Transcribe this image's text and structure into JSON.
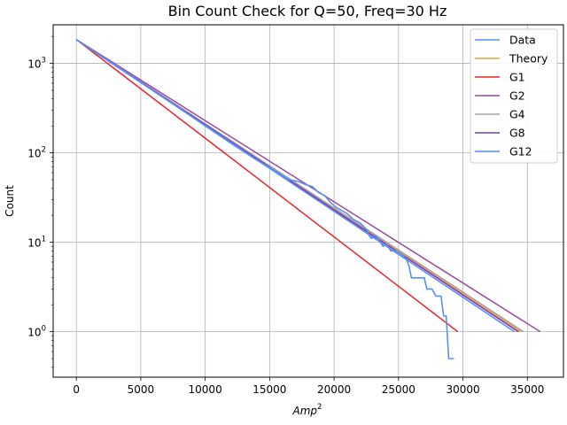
{
  "chart_data": {
    "type": "line",
    "title": "Bin Count Check for Q=50, Freq=30 Hz",
    "xlabel_base": "Amp",
    "xlabel_exp": "2",
    "ylabel": "Count",
    "xlim": [
      -1800,
      37800
    ],
    "ylim": [
      0.31,
      2700
    ],
    "yscale": "log",
    "grid": true,
    "legend_position": "top-right",
    "x_ticks": [
      0,
      5000,
      10000,
      15000,
      20000,
      25000,
      30000,
      35000
    ],
    "x_tick_labels": [
      "0",
      "5000",
      "10000",
      "15000",
      "20000",
      "25000",
      "30000",
      "35000"
    ],
    "y_ticks": [
      1,
      10,
      100,
      1000
    ],
    "y_tick_base": "10",
    "y_tick_exps": [
      "0",
      "1",
      "2",
      "3"
    ],
    "series": [
      {
        "name": "Data",
        "color": "#5591f5",
        "width": 1.6,
        "points": [
          [
            0,
            1850
          ],
          [
            2000,
            1180
          ],
          [
            4000,
            760
          ],
          [
            6000,
            490
          ],
          [
            8000,
            315
          ],
          [
            10000,
            200
          ],
          [
            12000,
            128
          ],
          [
            14000,
            83
          ],
          [
            15500,
            62
          ],
          [
            16500,
            50
          ],
          [
            17200,
            48
          ],
          [
            17800,
            44
          ],
          [
            18300,
            42
          ],
          [
            18800,
            36
          ],
          [
            19300,
            33
          ],
          [
            19700,
            28
          ],
          [
            20100,
            25
          ],
          [
            20500,
            23
          ],
          [
            21000,
            21
          ],
          [
            21500,
            18
          ],
          [
            22000,
            16.5
          ],
          [
            22500,
            14
          ],
          [
            22700,
            12
          ],
          [
            22900,
            11
          ],
          [
            23200,
            12
          ],
          [
            23500,
            10.5
          ],
          [
            23800,
            9
          ],
          [
            24100,
            9.5
          ],
          [
            24400,
            8
          ],
          [
            24800,
            8
          ],
          [
            25100,
            7.5
          ],
          [
            25400,
            7
          ],
          [
            25600,
            6.5
          ],
          [
            25800,
            5.5
          ],
          [
            26000,
            4
          ],
          [
            26300,
            4
          ],
          [
            26700,
            4
          ],
          [
            27000,
            4
          ],
          [
            27200,
            3
          ],
          [
            27600,
            3
          ],
          [
            27900,
            2.5
          ],
          [
            28300,
            2.5
          ],
          [
            28500,
            1.5
          ],
          [
            28700,
            1.5
          ],
          [
            28900,
            0.5
          ],
          [
            29300,
            0.5
          ]
        ]
      },
      {
        "name": "Theory",
        "color": "#f0a030",
        "width": 1.5,
        "points": [
          [
            0,
            1850
          ],
          [
            34500,
            1
          ]
        ]
      },
      {
        "name": "G1",
        "color": "#e8262a",
        "width": 1.5,
        "points": [
          [
            0,
            1850
          ],
          [
            29600,
            1
          ]
        ]
      },
      {
        "name": "G2",
        "color": "#9b4a9e",
        "width": 1.5,
        "points": [
          [
            0,
            1850
          ],
          [
            36000,
            1
          ]
        ]
      },
      {
        "name": "G4",
        "color": "#a3a3a3",
        "width": 1.5,
        "points": [
          [
            0,
            1850
          ],
          [
            34700,
            1
          ]
        ]
      },
      {
        "name": "G8",
        "color": "#7a33c7",
        "width": 1.5,
        "points": [
          [
            0,
            1850
          ],
          [
            34300,
            1
          ]
        ]
      },
      {
        "name": "G12",
        "color": "#4f8df2",
        "width": 1.5,
        "points": [
          [
            0,
            1850
          ],
          [
            34000,
            1
          ]
        ]
      }
    ]
  }
}
